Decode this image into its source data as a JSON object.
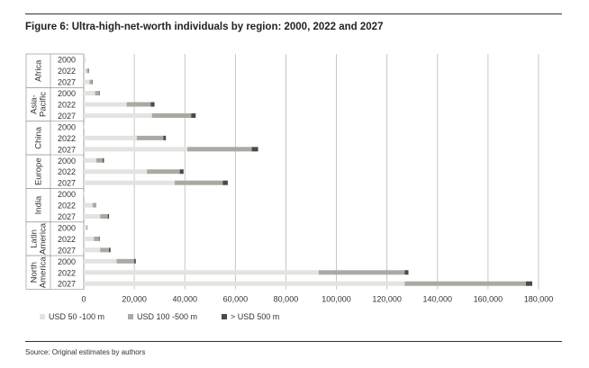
{
  "title": "Figure 6: Ultra-high-net-worth individuals by region: 2000, 2022 and 2027",
  "source": "Source: Original estimates by authors",
  "chart_data": {
    "type": "bar",
    "orientation": "horizontal",
    "stacked": true,
    "groups": [
      {
        "label": [
          "Africa"
        ],
        "years": [
          "2000",
          "2022",
          "2027"
        ]
      },
      {
        "label": [
          "Asia-",
          "Pacific"
        ],
        "years": [
          "2000",
          "2022",
          "2027"
        ]
      },
      {
        "label": [
          "China"
        ],
        "years": [
          "2000",
          "2022",
          "2027"
        ]
      },
      {
        "label": [
          "Europe"
        ],
        "years": [
          "2000",
          "2022",
          "2027"
        ]
      },
      {
        "label": [
          "India"
        ],
        "years": [
          "2000",
          "2022",
          "2027"
        ]
      },
      {
        "label": [
          "Latin",
          "America"
        ],
        "years": [
          "2000",
          "2022",
          "2027"
        ]
      },
      {
        "label": [
          "North",
          "America"
        ],
        "years": [
          "2000",
          "2022",
          "2027"
        ]
      }
    ],
    "series": [
      {
        "name": "USD 50 -100 m",
        "color": "#e3e3e0",
        "values": [
          300,
          1200,
          2300,
          4500,
          17000,
          27000,
          100,
          21000,
          41000,
          5000,
          25000,
          36000,
          100,
          3500,
          6500,
          1000,
          4000,
          6500,
          13000,
          93000,
          127000
        ]
      },
      {
        "name": "USD 100 -500 m",
        "color": "#a9aba3",
        "values": [
          100,
          600,
          1000,
          1500,
          9500,
          15500,
          0,
          10500,
          25500,
          2500,
          13000,
          19000,
          0,
          1500,
          3000,
          500,
          2000,
          3500,
          7000,
          34000,
          48000
        ]
      },
      {
        "name": "> USD 500 m",
        "color": "#4a4a4a",
        "values": [
          0,
          100,
          200,
          300,
          1500,
          1800,
          0,
          1000,
          2500,
          500,
          1500,
          2000,
          0,
          0,
          500,
          0,
          300,
          600,
          600,
          1500,
          2500
        ]
      }
    ],
    "x_ticks": [
      "0",
      "20,000",
      "40,000",
      "60,000",
      "80,000",
      "100,000",
      "120,000",
      "140,000",
      "160,000",
      "180,000"
    ],
    "xlim": [
      0,
      180000
    ],
    "grid": "vertical",
    "legend_position": "bottom-left"
  }
}
